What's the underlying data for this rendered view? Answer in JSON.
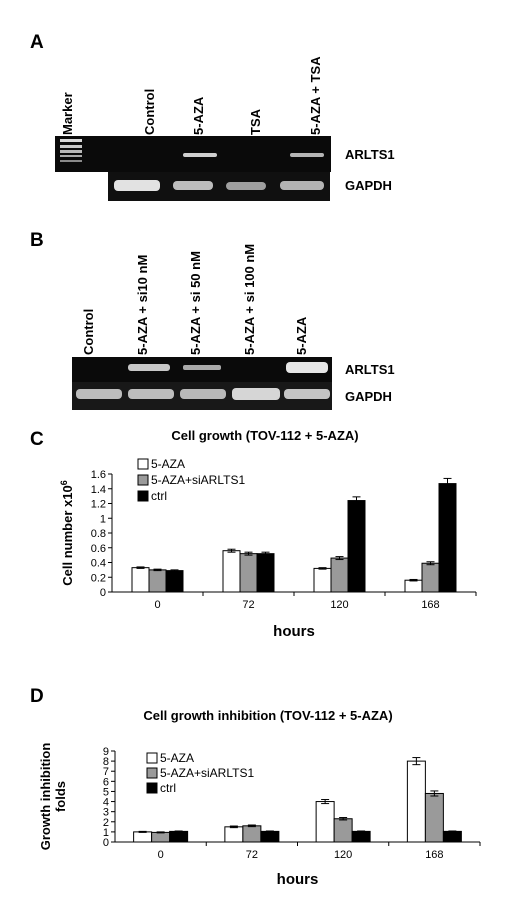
{
  "panels": {
    "A": {
      "letter": "A",
      "lanes": [
        "Marker",
        "Control",
        "5-AZA",
        "TSA",
        "5-AZA + TSA"
      ],
      "bands": [
        "ARLTS1",
        "GAPDH"
      ]
    },
    "B": {
      "letter": "B",
      "lanes": [
        "Control",
        "5-AZA + si10 nM",
        "5-AZA + si 50 nM",
        "5-AZA + si 100 nM",
        "5-AZA"
      ],
      "bands": [
        "ARLTS1",
        "GAPDH"
      ]
    },
    "C": {
      "letter": "C"
    },
    "D": {
      "letter": "D"
    }
  },
  "chart_data": [
    {
      "type": "bar",
      "title": "Cell growth (TOV-112 + 5-AZA)",
      "xlabel": "hours",
      "ylabel": "Cell number x10",
      "ylabel_sup": "6",
      "categories": [
        "0",
        "72",
        "120",
        "168"
      ],
      "ylim": [
        0,
        1.6
      ],
      "yticks": [
        "0",
        "0.2",
        "0.4",
        "0.6",
        "0.8",
        "1",
        "1.2",
        "1.4",
        "1.6"
      ],
      "legend_position": "top-left",
      "series": [
        {
          "name": "5-AZA",
          "color": "#ffffff",
          "values": [
            0.33,
            0.56,
            0.32,
            0.16
          ],
          "errors": [
            0.01,
            0.02,
            0.01,
            0.01
          ]
        },
        {
          "name": "5-AZA+siARLTS1",
          "color": "#9a9a9a",
          "values": [
            0.3,
            0.52,
            0.46,
            0.39
          ],
          "errors": [
            0.01,
            0.02,
            0.02,
            0.02
          ]
        },
        {
          "name": "ctrl",
          "color": "#000000",
          "values": [
            0.29,
            0.52,
            1.24,
            1.47
          ],
          "errors": [
            0.01,
            0.02,
            0.05,
            0.07
          ]
        }
      ]
    },
    {
      "type": "bar",
      "title": "Cell growth inhibition (TOV-112 + 5-AZA)",
      "xlabel": "hours",
      "ylabel": "Growth inhibition folds",
      "ylabel_lines": [
        "Growth inhibition",
        "folds"
      ],
      "categories": [
        "0",
        "72",
        "120",
        "168"
      ],
      "ylim": [
        0,
        9
      ],
      "yticks": [
        "0",
        "1",
        "2",
        "3",
        "4",
        "5",
        "6",
        "7",
        "8",
        "9"
      ],
      "legend_position": "top-left",
      "series": [
        {
          "name": "5-AZA",
          "color": "#ffffff",
          "values": [
            1.0,
            1.5,
            4.0,
            8.0
          ],
          "errors": [
            0.05,
            0.08,
            0.2,
            0.35
          ]
        },
        {
          "name": "5-AZA+siARLTS1",
          "color": "#9a9a9a",
          "values": [
            0.95,
            1.6,
            2.3,
            4.8
          ],
          "errors": [
            0.05,
            0.08,
            0.12,
            0.25
          ]
        },
        {
          "name": "ctrl",
          "color": "#000000",
          "values": [
            1.05,
            1.05,
            1.05,
            1.05
          ],
          "errors": [
            0.04,
            0.04,
            0.04,
            0.04
          ]
        }
      ]
    }
  ]
}
